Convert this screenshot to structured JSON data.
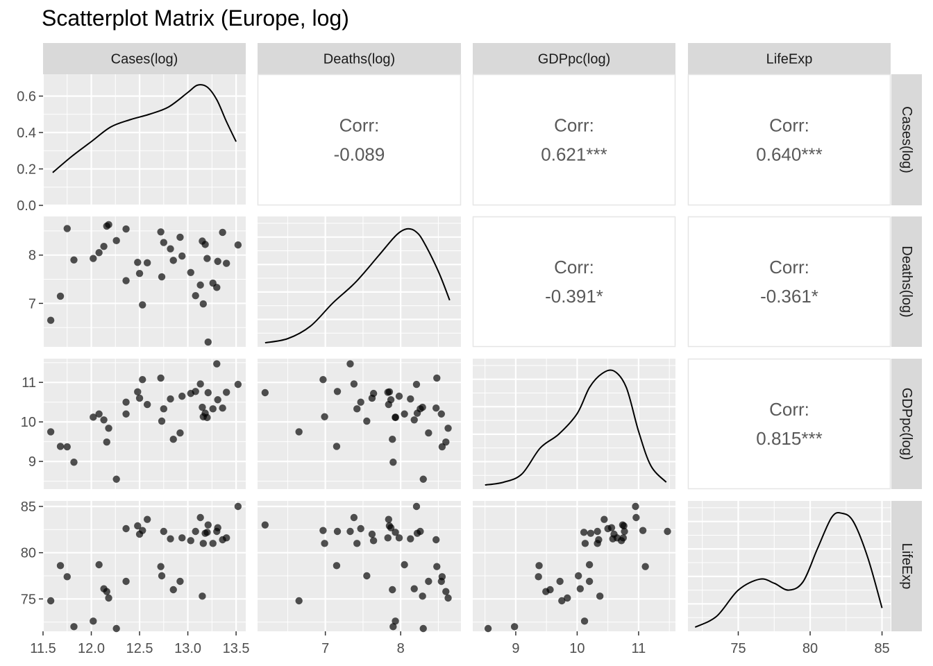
{
  "title": "Scatterplot Matrix (Europe, log)",
  "chart_data": {
    "type": "scatter",
    "variables": [
      "Cases(log)",
      "Deaths(log)",
      "GDPpc(log)",
      "LifeExp"
    ],
    "axis_ticks": [
      [
        11.5,
        12.0,
        12.5,
        13.0,
        13.5
      ],
      [
        7,
        8
      ],
      [
        9,
        10,
        11
      ],
      [
        75,
        80,
        85
      ]
    ],
    "axis_tick_labels": [
      [
        "11.5",
        "12.0",
        "12.5",
        "13.0",
        "13.5"
      ],
      [
        "7",
        "8"
      ],
      [
        "9",
        "10",
        "11"
      ],
      [
        "75",
        "80",
        "85"
      ]
    ],
    "axis_limits": [
      [
        11.5,
        13.6
      ],
      [
        6.1,
        8.8
      ],
      [
        8.3,
        11.6
      ],
      [
        71.5,
        85.6
      ]
    ],
    "density_axis": {
      "ticks": [
        0.0,
        0.2,
        0.4,
        0.6
      ],
      "labels": [
        "0.0",
        "0.2",
        "0.4",
        "0.6"
      ],
      "ylim": [
        0.0,
        0.72
      ]
    },
    "correlations": [
      {
        "row": 0,
        "col": 1,
        "label": "Corr:",
        "value": "-0.089"
      },
      {
        "row": 0,
        "col": 2,
        "label": "Corr:",
        "value": "0.621***"
      },
      {
        "row": 0,
        "col": 3,
        "label": "Corr:",
        "value": "0.640***"
      },
      {
        "row": 1,
        "col": 2,
        "label": "Corr:",
        "value": "-0.391*"
      },
      {
        "row": 1,
        "col": 3,
        "label": "Corr:",
        "value": "-0.361*"
      },
      {
        "row": 2,
        "col": 3,
        "label": "Corr:",
        "value": "0.815***"
      }
    ],
    "densities": [
      {
        "x": [
          11.6,
          11.8,
          12.0,
          12.2,
          12.4,
          12.6,
          12.8,
          13.0,
          13.1,
          13.2,
          13.3,
          13.4,
          13.5
        ],
        "y": [
          0.18,
          0.27,
          0.35,
          0.43,
          0.47,
          0.5,
          0.54,
          0.62,
          0.66,
          0.65,
          0.58,
          0.46,
          0.35
        ]
      },
      {
        "x": [
          6.2,
          6.5,
          6.8,
          7.1,
          7.4,
          7.7,
          7.9,
          8.0,
          8.1,
          8.2,
          8.3,
          8.5,
          8.65
        ],
        "y": [
          0.03,
          0.06,
          0.15,
          0.32,
          0.47,
          0.66,
          0.79,
          0.84,
          0.86,
          0.84,
          0.77,
          0.55,
          0.34
        ]
      },
      {
        "x": [
          8.5,
          8.8,
          9.1,
          9.4,
          9.7,
          10.0,
          10.2,
          10.4,
          10.6,
          10.8,
          11.0,
          11.2,
          11.45
        ],
        "y": [
          0.03,
          0.05,
          0.11,
          0.3,
          0.4,
          0.55,
          0.74,
          0.84,
          0.86,
          0.74,
          0.42,
          0.17,
          0.05
        ]
      },
      {
        "x": [
          72.0,
          73.5,
          75.0,
          76.5,
          77.5,
          78.5,
          79.5,
          80.5,
          81.5,
          82.2,
          83.0,
          84.0,
          85.0
        ],
        "y": [
          0.03,
          0.11,
          0.3,
          0.38,
          0.35,
          0.3,
          0.36,
          0.6,
          0.83,
          0.86,
          0.8,
          0.54,
          0.17
        ]
      }
    ],
    "points": [
      [
        11.58,
        6.65,
        9.75,
        74.8
      ],
      [
        11.68,
        7.15,
        9.38,
        78.6
      ],
      [
        11.75,
        8.55,
        9.37,
        77.4
      ],
      [
        11.82,
        7.9,
        8.98,
        72.0
      ],
      [
        12.02,
        7.93,
        10.12,
        72.6
      ],
      [
        12.08,
        8.05,
        10.2,
        78.7
      ],
      [
        12.13,
        8.18,
        10.05,
        76.1
      ],
      [
        12.16,
        8.6,
        9.49,
        75.8
      ],
      [
        12.18,
        8.63,
        9.84,
        75.1
      ],
      [
        12.26,
        8.3,
        8.55,
        71.8
      ],
      [
        12.36,
        8.54,
        10.2,
        76.9
      ],
      [
        12.36,
        7.47,
        10.5,
        82.6
      ],
      [
        12.48,
        7.85,
        10.76,
        82.9
      ],
      [
        12.5,
        7.62,
        10.6,
        82.0
      ],
      [
        12.53,
        6.97,
        11.07,
        82.4
      ],
      [
        12.58,
        7.84,
        10.44,
        83.6
      ],
      [
        12.72,
        8.48,
        11.11,
        78.5
      ],
      [
        12.73,
        7.55,
        10.02,
        77.5
      ],
      [
        12.75,
        8.26,
        10.33,
        82.3
      ],
      [
        12.82,
        8.13,
        10.58,
        81.5
      ],
      [
        12.85,
        7.89,
        9.56,
        76.0
      ],
      [
        12.92,
        8.37,
        9.72,
        76.9
      ],
      [
        12.94,
        7.98,
        10.65,
        81.6
      ],
      [
        13.03,
        7.64,
        10.72,
        81.3
      ],
      [
        13.08,
        7.16,
        10.77,
        82.3
      ],
      [
        13.13,
        7.38,
        10.96,
        83.8
      ],
      [
        13.15,
        8.29,
        10.37,
        75.3
      ],
      [
        13.16,
        6.99,
        10.13,
        81.0
      ],
      [
        13.18,
        8.22,
        10.22,
        82.1
      ],
      [
        13.2,
        7.93,
        10.11,
        82.2
      ],
      [
        13.21,
        6.2,
        10.74,
        83.0
      ],
      [
        13.26,
        7.42,
        10.33,
        81.0
      ],
      [
        13.3,
        7.33,
        11.47,
        82.3
      ],
      [
        13.31,
        7.87,
        10.56,
        82.7
      ],
      [
        13.36,
        8.47,
        10.35,
        81.4
      ],
      [
        13.4,
        7.83,
        10.75,
        81.6
      ],
      [
        13.52,
        8.21,
        10.95,
        85.0
      ]
    ]
  }
}
